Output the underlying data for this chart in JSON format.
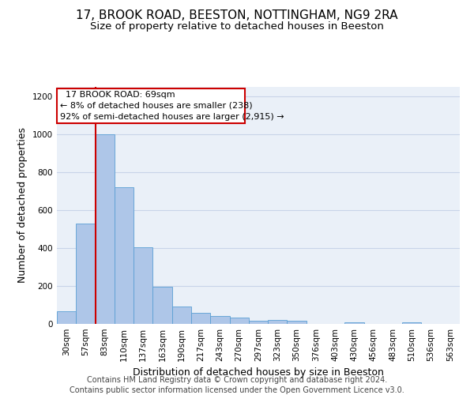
{
  "title1": "17, BROOK ROAD, BEESTON, NOTTINGHAM, NG9 2RA",
  "title2": "Size of property relative to detached houses in Beeston",
  "xlabel": "Distribution of detached houses by size in Beeston",
  "ylabel": "Number of detached properties",
  "categories": [
    "30sqm",
    "57sqm",
    "83sqm",
    "110sqm",
    "137sqm",
    "163sqm",
    "190sqm",
    "217sqm",
    "243sqm",
    "270sqm",
    "297sqm",
    "323sqm",
    "350sqm",
    "376sqm",
    "403sqm",
    "430sqm",
    "456sqm",
    "483sqm",
    "510sqm",
    "536sqm",
    "563sqm"
  ],
  "values": [
    65,
    530,
    1000,
    720,
    405,
    195,
    90,
    60,
    40,
    32,
    18,
    20,
    18,
    0,
    0,
    10,
    0,
    0,
    10,
    0,
    0
  ],
  "bar_color": "#aec6e8",
  "bar_edge_color": "#5a9fd4",
  "red_line_x": 1.5,
  "annotation_text": "  17 BROOK ROAD: 69sqm\n← 8% of detached houses are smaller (238)\n92% of semi-detached houses are larger (2,915) →",
  "annotation_box_color": "#ffffff",
  "annotation_box_edge_color": "#cc0000",
  "red_line_color": "#cc0000",
  "ylim": [
    0,
    1250
  ],
  "yticks": [
    0,
    200,
    400,
    600,
    800,
    1000,
    1200
  ],
  "grid_color": "#c8d4e8",
  "background_color": "#eaf0f8",
  "footer1": "Contains HM Land Registry data © Crown copyright and database right 2024.",
  "footer2": "Contains public sector information licensed under the Open Government Licence v3.0.",
  "title1_fontsize": 11,
  "title2_fontsize": 9.5,
  "xlabel_fontsize": 9,
  "ylabel_fontsize": 9,
  "tick_fontsize": 7.5,
  "footer_fontsize": 7
}
